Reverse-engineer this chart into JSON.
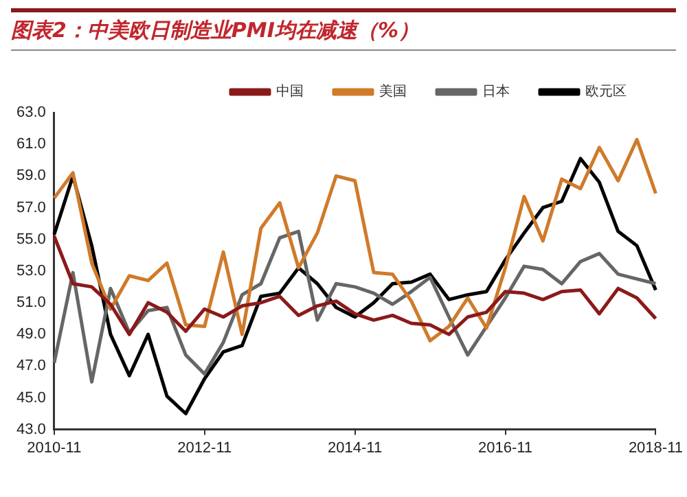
{
  "chart_data": {
    "type": "line",
    "title": "图表2：中美欧日制造业PMI均在减速（%）",
    "categories": [
      "2010-11",
      null,
      null,
      null,
      null,
      null,
      null,
      null,
      "2012-11",
      null,
      null,
      null,
      null,
      null,
      null,
      null,
      "2014-11",
      null,
      null,
      null,
      null,
      null,
      null,
      null,
      "2016-11",
      null,
      null,
      null,
      null,
      null,
      null,
      null,
      "2018-11"
    ],
    "series": [
      {
        "name": "中国",
        "color": "#8b1a1a",
        "values": [
          55.2,
          52.2,
          52.0,
          50.9,
          49.0,
          51.0,
          50.4,
          49.2,
          50.6,
          50.1,
          50.8,
          51.0,
          51.4,
          50.2,
          50.8,
          51.1,
          50.3,
          49.9,
          50.2,
          49.7,
          49.6,
          49.0,
          50.1,
          50.4,
          51.7,
          51.6,
          51.2,
          51.7,
          51.8,
          50.3,
          51.9,
          51.3,
          50.0
        ]
      },
      {
        "name": "美国",
        "color": "#d07a2a",
        "values": [
          57.6,
          59.2,
          53.5,
          50.6,
          52.7,
          52.4,
          53.5,
          49.6,
          49.5,
          54.2,
          49.0,
          55.7,
          57.3,
          53.2,
          55.4,
          59.0,
          58.7,
          52.9,
          52.8,
          51.1,
          48.6,
          49.5,
          51.3,
          49.4,
          53.2,
          57.7,
          54.9,
          58.8,
          58.2,
          60.8,
          58.7,
          61.3,
          57.9
        ]
      },
      {
        "name": "日本",
        "color": "#666666",
        "values": [
          47.2,
          52.9,
          46.0,
          51.9,
          49.1,
          50.5,
          50.7,
          47.7,
          46.5,
          48.5,
          51.5,
          52.2,
          55.1,
          55.5,
          49.9,
          52.2,
          52.0,
          51.6,
          50.9,
          51.7,
          52.6,
          50.1,
          47.7,
          49.5,
          51.3,
          53.3,
          53.1,
          52.2,
          53.6,
          54.1,
          52.8,
          52.5,
          52.2
        ]
      },
      {
        "name": "欧元区",
        "color": "#000000",
        "values": [
          55.3,
          59.0,
          54.6,
          49.0,
          46.4,
          49.0,
          45.1,
          44.0,
          46.2,
          47.9,
          48.3,
          51.4,
          51.6,
          53.2,
          52.2,
          50.7,
          50.1,
          51.0,
          52.2,
          52.3,
          52.8,
          51.2,
          51.5,
          51.7,
          53.7,
          55.4,
          57.0,
          57.4,
          60.1,
          58.6,
          55.5,
          54.6,
          51.8
        ]
      }
    ],
    "ylim": [
      43,
      63
    ],
    "yticks": [
      {
        "value": 43,
        "label": "43.0"
      },
      {
        "value": 45,
        "label": "45.0"
      },
      {
        "value": 47,
        "label": "47.0"
      },
      {
        "value": 49,
        "label": "49.0"
      },
      {
        "value": 51,
        "label": "51.0"
      },
      {
        "value": 53,
        "label": "53.0"
      },
      {
        "value": 55,
        "label": "55.0"
      },
      {
        "value": 57,
        "label": "57.0"
      },
      {
        "value": 59,
        "label": "59.0"
      },
      {
        "value": 61,
        "label": "61.0"
      },
      {
        "value": 63,
        "label": "63.0"
      }
    ],
    "legend": "top",
    "grid": false,
    "marker": "none",
    "line_style": "solid"
  }
}
